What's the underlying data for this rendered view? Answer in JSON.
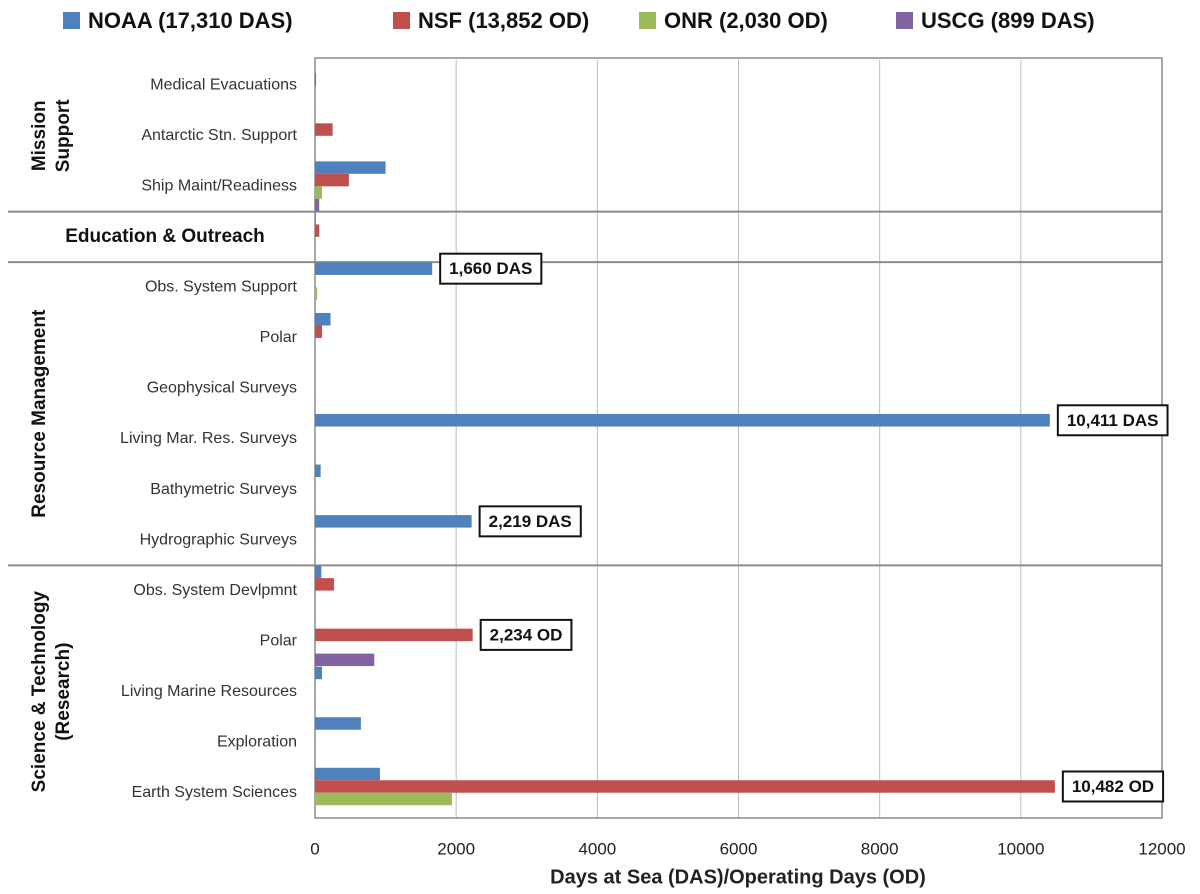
{
  "chart_data": {
    "type": "bar",
    "orientation": "horizontal",
    "x_label": "Days at Sea (DAS)/Operating Days (OD)",
    "categories": [
      "Medical Evacuations",
      "Antarctic Stn. Support",
      "Ship Maint/Readiness",
      null,
      "Obs. System Support",
      "Polar",
      "Geophysical Surveys",
      "Living Mar. Res. Surveys",
      "Bathymetric Surveys",
      "Hydrographic Surveys",
      "Obs. System Devlpmnt",
      "Polar",
      "Living Marine Resources",
      "Exploration",
      "Earth System Sciences"
    ],
    "groups": [
      {
        "label": [
          "Mission",
          "Support"
        ],
        "start": 0,
        "end": 2
      },
      {
        "label": [
          "Education & Outreach"
        ],
        "start": 3,
        "end": 3
      },
      {
        "label": [
          "Resource Management"
        ],
        "start": 4,
        "end": 9
      },
      {
        "label": [
          "Science & Technology",
          "(Research)"
        ],
        "start": 10,
        "end": 14
      }
    ],
    "series": [
      {
        "name": "NOAA (17,310 DAS)",
        "color": "#4f81bd",
        "values": [
          0,
          0,
          1000,
          10,
          1660,
          220,
          0,
          10411,
          80,
          2219,
          90,
          0,
          100,
          650,
          920
        ],
        "value_labels": [
          null,
          null,
          null,
          null,
          "1,660 DAS",
          null,
          null,
          "10,411 DAS",
          null,
          "2,219 DAS",
          null,
          null,
          null,
          null,
          null
        ]
      },
      {
        "name": "NSF (13,852 OD)",
        "color": "#c0504d",
        "values": [
          15,
          250,
          480,
          60,
          0,
          100,
          0,
          0,
          0,
          0,
          270,
          2234,
          0,
          0,
          10482
        ],
        "value_labels": [
          null,
          null,
          null,
          null,
          null,
          null,
          null,
          null,
          null,
          null,
          null,
          "2,234 OD",
          null,
          null,
          "10,482 OD"
        ]
      },
      {
        "name": "ONR (2,030 OD)",
        "color": "#9bbb59",
        "values": [
          0,
          0,
          100,
          0,
          30,
          0,
          0,
          0,
          0,
          0,
          0,
          0,
          0,
          0,
          1940
        ]
      },
      {
        "name": "USCG (899 DAS)",
        "color": "#8064a2",
        "values": [
          0,
          0,
          60,
          0,
          0,
          0,
          0,
          0,
          0,
          0,
          0,
          840,
          0,
          0,
          0
        ]
      }
    ],
    "xlim": [
      0,
      12000
    ],
    "xticks": [
      0,
      2000,
      4000,
      6000,
      8000,
      10000,
      12000
    ],
    "grid": true,
    "legend": "top"
  }
}
